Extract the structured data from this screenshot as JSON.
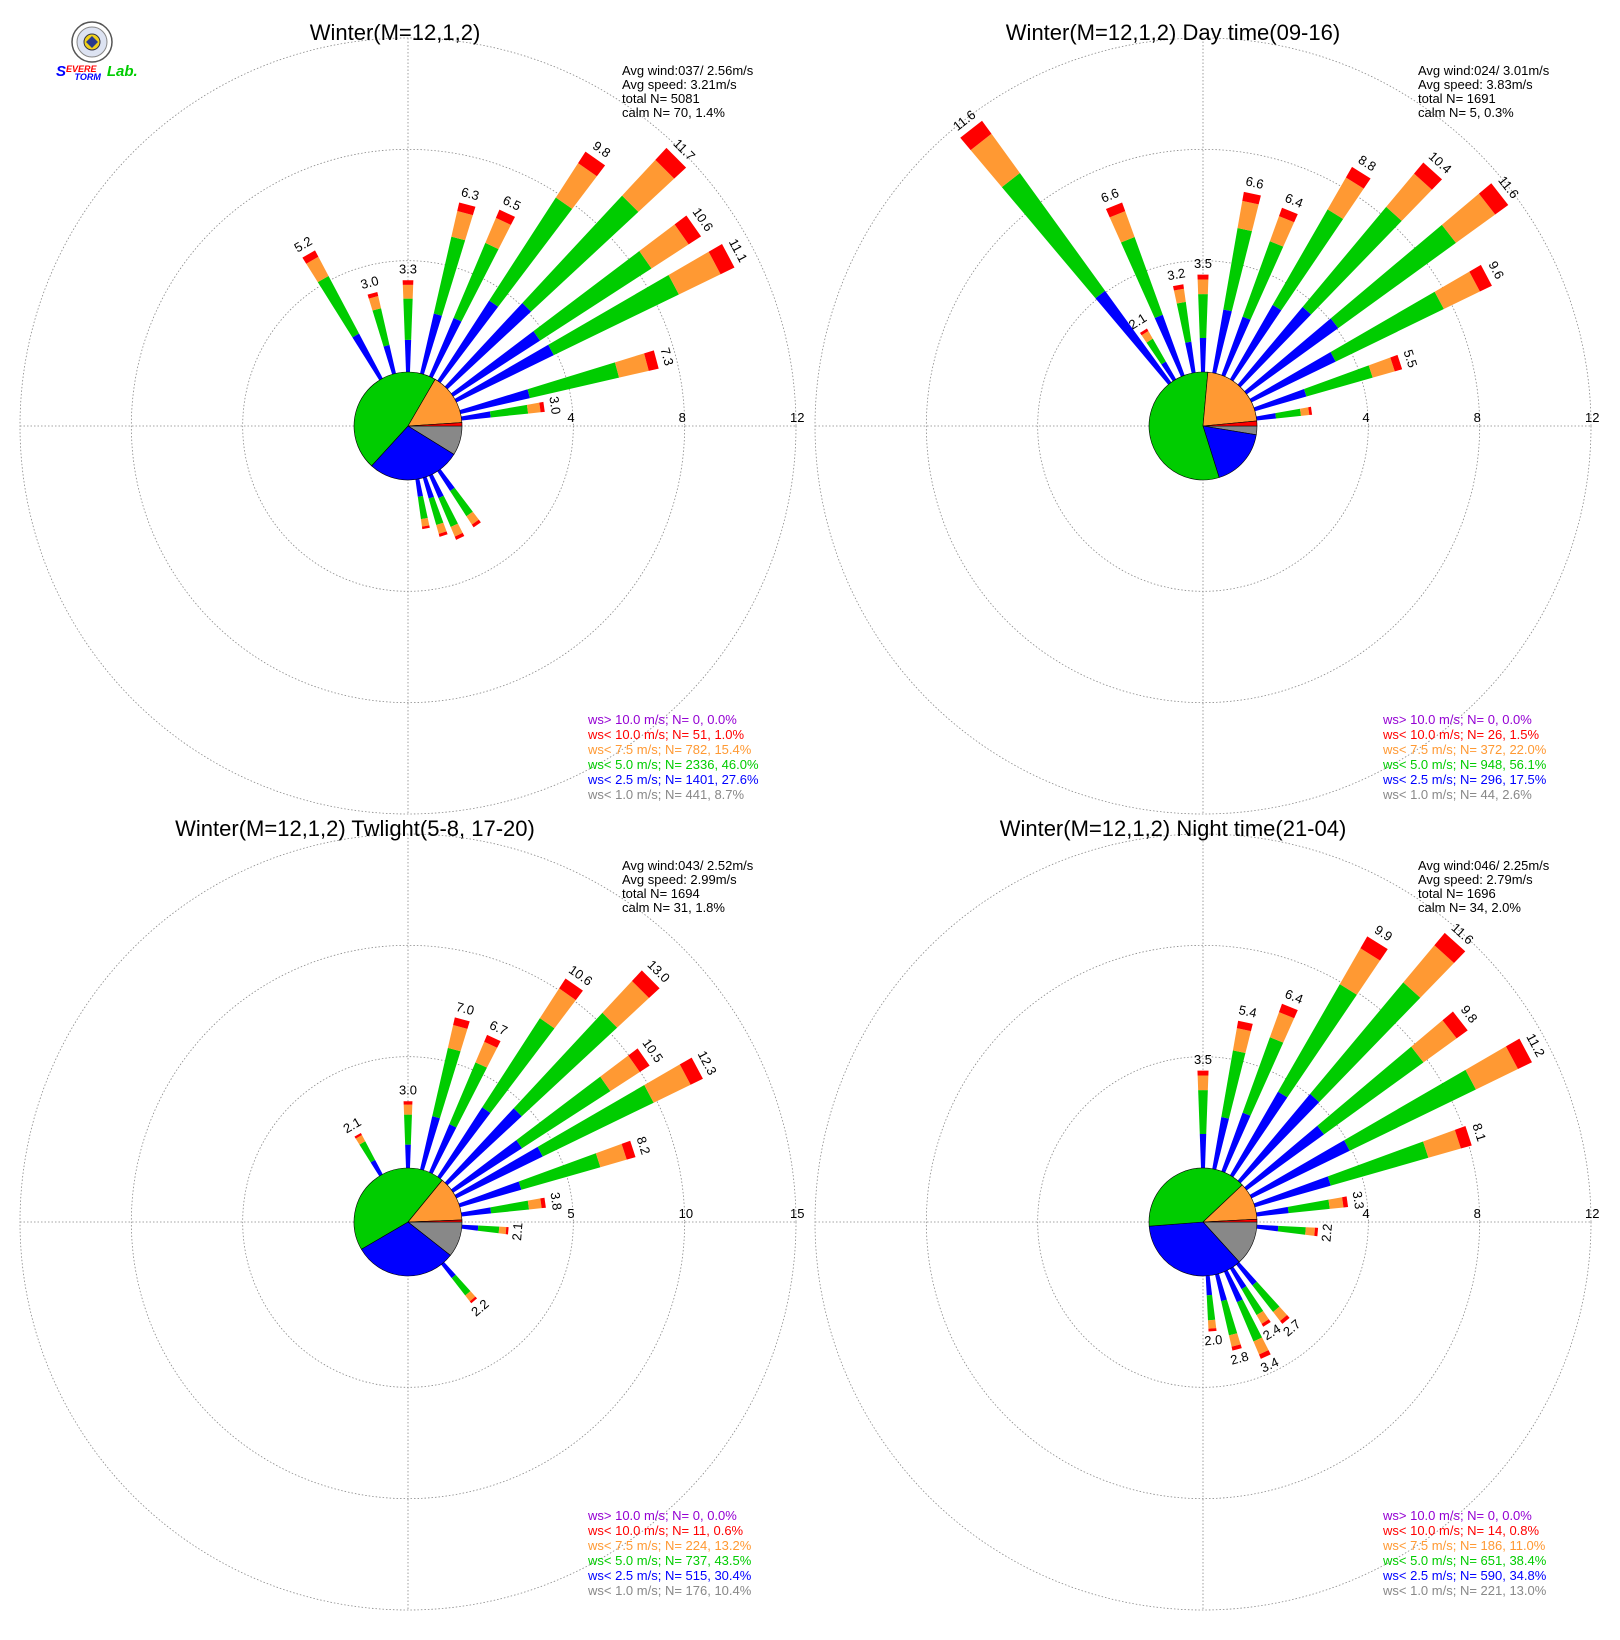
{
  "colors": {
    "gt10": "#9400D3",
    "lt10": "#FF0000",
    "lt7_5": "#FF9933",
    "lt5": "#00CC00",
    "lt2_5": "#0000FF",
    "lt1": "#888888",
    "pie_slices": [
      "#888888",
      "#0000FF",
      "#00CC00",
      "#FF9933",
      "#FF0000"
    ]
  },
  "logo": {
    "icon": "severe-storm-lab-seal-icon",
    "text_parts": [
      "S",
      "EVERE",
      "TORM",
      "Lab."
    ],
    "text_colors": [
      "#0000FF",
      "#FF0000",
      "#0000FF",
      "#00CC00"
    ]
  },
  "chart_data": [
    {
      "type": "polar-wind-rose",
      "title": "Winter(M=12,1,2)",
      "rings": [
        4,
        8,
        12
      ],
      "rmax": 12,
      "stats": {
        "avg_wind": "Avg wind:037/ 2.56m/s",
        "avg_speed": "Avg speed: 3.21m/s",
        "total": "total N=      5081",
        "calm": "calm N=     70,   1.4%"
      },
      "legend": [
        {
          "label": "ws> 10.0 m/s; N=",
          "value": "    0,  0.0%",
          "color": "#9400D3"
        },
        {
          "label": "ws< 10.0 m/s; N=",
          "value": "   51,  1.0%",
          "color": "#FF0000"
        },
        {
          "label": "ws<  7.5 m/s; N=",
          "value": "  782, 15.4%",
          "color": "#FF9933"
        },
        {
          "label": "ws<  5.0 m/s; N=",
          "value": " 2336, 46.0%",
          "color": "#00CC00"
        },
        {
          "label": "ws<  2.5 m/s; N=",
          "value": " 1401, 27.6%",
          "color": "#0000FF"
        },
        {
          "label": "ws<  1.0 m/s; N=",
          "value": "  441,  8.7%",
          "color": "#888888"
        }
      ],
      "pie": [
        8.7,
        27.6,
        46.0,
        15.4,
        1.0
      ],
      "bars": [
        {
          "dir": 330,
          "total": 5.2,
          "label": "5.2"
        },
        {
          "dir": 345,
          "total": 3.0,
          "label": "3.0"
        },
        {
          "dir": 0,
          "total": 3.3,
          "label": "3.3"
        },
        {
          "dir": 15,
          "total": 6.3,
          "label": "6.3"
        },
        {
          "dir": 25,
          "total": 6.5,
          "label": "6.5"
        },
        {
          "dir": 35,
          "total": 9.8,
          "label": "9.8"
        },
        {
          "dir": 45,
          "total": 11.7,
          "label": "11.7"
        },
        {
          "dir": 55,
          "total": 10.6,
          "label": "10.6"
        },
        {
          "dir": 62,
          "total": 11.1,
          "label": "11.1"
        },
        {
          "dir": 75,
          "total": 7.3,
          "label": "7.3"
        },
        {
          "dir": 82,
          "total": 3.0,
          "label": "3.0"
        },
        {
          "dir": 145,
          "total": 2.4
        },
        {
          "dir": 155,
          "total": 2.5
        },
        {
          "dir": 162,
          "total": 2.2
        },
        {
          "dir": 170,
          "total": 1.8
        }
      ]
    },
    {
      "type": "polar-wind-rose",
      "title": "Winter(M=12,1,2) Day time(09-16)",
      "rings": [
        4,
        8,
        12
      ],
      "rmax": 12,
      "stats": {
        "avg_wind": "Avg wind:024/ 3.01m/s",
        "avg_speed": "Avg speed: 3.83m/s",
        "total": "total N=      1691",
        "calm": "calm N=      5,   0.3%"
      },
      "legend": [
        {
          "label": "ws> 10.0 m/s; N=",
          "value": "    0,  0.0%",
          "color": "#9400D3"
        },
        {
          "label": "ws< 10.0 m/s; N=",
          "value": "   26,  1.5%",
          "color": "#FF0000"
        },
        {
          "label": "ws<  7.5 m/s; N=",
          "value": "  372, 22.0%",
          "color": "#FF9933"
        },
        {
          "label": "ws<  5.0 m/s; N=",
          "value": "  948, 56.1%",
          "color": "#00CC00"
        },
        {
          "label": "ws<  2.5 m/s; N=",
          "value": "  296, 17.5%",
          "color": "#0000FF"
        },
        {
          "label": "ws<  1.0 m/s; N=",
          "value": "   44,  2.6%",
          "color": "#888888"
        }
      ],
      "pie": [
        2.6,
        17.5,
        56.1,
        22.0,
        1.5
      ],
      "bars": [
        {
          "dir": 322,
          "total": 11.6,
          "label": "11.6"
        },
        {
          "dir": 338,
          "total": 6.6,
          "label": "6.6"
        },
        {
          "dir": 350,
          "total": 3.2,
          "label": "3.2"
        },
        {
          "dir": 0,
          "total": 3.5,
          "label": "3.5"
        },
        {
          "dir": 328,
          "total": 2.1,
          "label": "2.1"
        },
        {
          "dir": 12,
          "total": 6.6,
          "label": "6.6"
        },
        {
          "dir": 22,
          "total": 6.4,
          "label": "6.4"
        },
        {
          "dir": 32,
          "total": 8.8,
          "label": "8.8"
        },
        {
          "dir": 42,
          "total": 10.4,
          "label": "10.4"
        },
        {
          "dir": 52,
          "total": 11.6,
          "label": "11.6"
        },
        {
          "dir": 62,
          "total": 9.6,
          "label": "9.6"
        },
        {
          "dir": 72,
          "total": 5.5,
          "label": "5.5"
        },
        {
          "dir": 82,
          "total": 2.0
        }
      ]
    },
    {
      "type": "polar-wind-rose",
      "title": "Winter(M=12,1,2) Twlight(5-8, 17-20)",
      "rings": [
        5,
        10,
        15
      ],
      "rmax": 15,
      "stats": {
        "avg_wind": "Avg wind:043/ 2.52m/s",
        "avg_speed": "Avg speed: 2.99m/s",
        "total": "total N=      1694",
        "calm": "calm N=     31,   1.8%"
      },
      "legend": [
        {
          "label": "ws> 10.0 m/s; N=",
          "value": "    0,  0.0%",
          "color": "#9400D3"
        },
        {
          "label": "ws< 10.0 m/s; N=",
          "value": "   11,  0.6%",
          "color": "#FF0000"
        },
        {
          "label": "ws<  7.5 m/s; N=",
          "value": "  224, 13.2%",
          "color": "#FF9933"
        },
        {
          "label": "ws<  5.0 m/s; N=",
          "value": "  737, 43.5%",
          "color": "#00CC00"
        },
        {
          "label": "ws<  2.5 m/s; N=",
          "value": "  515, 30.4%",
          "color": "#0000FF"
        },
        {
          "label": "ws<  1.0 m/s; N=",
          "value": "  176, 10.4%",
          "color": "#888888"
        }
      ],
      "pie": [
        10.4,
        30.4,
        43.5,
        13.2,
        0.6
      ],
      "bars": [
        {
          "dir": 330,
          "total": 2.1,
          "label": "2.1"
        },
        {
          "dir": 0,
          "total": 3.0,
          "label": "3.0"
        },
        {
          "dir": 15,
          "total": 7.0,
          "label": "7.0"
        },
        {
          "dir": 25,
          "total": 6.7,
          "label": "6.7"
        },
        {
          "dir": 35,
          "total": 10.6,
          "label": "10.6"
        },
        {
          "dir": 45,
          "total": 13.0,
          "label": "13.0"
        },
        {
          "dir": 55,
          "total": 10.5,
          "label": "10.5"
        },
        {
          "dir": 62,
          "total": 12.3,
          "label": "12.3"
        },
        {
          "dir": 72,
          "total": 8.2,
          "label": "8.2"
        },
        {
          "dir": 82,
          "total": 3.8,
          "label": "3.8"
        },
        {
          "dir": 95,
          "total": 2.1,
          "label": "2.1"
        },
        {
          "dir": 140,
          "total": 2.2,
          "label": "2.2"
        }
      ]
    },
    {
      "type": "polar-wind-rose",
      "title": "Winter(M=12,1,2) Night time(21-04)",
      "rings": [
        4,
        8,
        12
      ],
      "rmax": 12,
      "stats": {
        "avg_wind": "Avg wind:046/ 2.25m/s",
        "avg_speed": "Avg speed: 2.79m/s",
        "total": "total N=      1696",
        "calm": "calm N=     34,   2.0%"
      },
      "legend": [
        {
          "label": "ws> 10.0 m/s; N=",
          "value": "    0,  0.0%",
          "color": "#9400D3"
        },
        {
          "label": "ws< 10.0 m/s; N=",
          "value": "   14,  0.8%",
          "color": "#FF0000"
        },
        {
          "label": "ws<  7.5 m/s; N=",
          "value": "  186, 11.0%",
          "color": "#FF9933"
        },
        {
          "label": "ws<  5.0 m/s; N=",
          "value": "  651, 38.4%",
          "color": "#00CC00"
        },
        {
          "label": "ws<  2.5 m/s; N=",
          "value": "  590, 34.8%",
          "color": "#0000FF"
        },
        {
          "label": "ws<  1.0 m/s; N=",
          "value": "  221, 13.0%",
          "color": "#888888"
        }
      ],
      "pie": [
        13.0,
        34.8,
        38.4,
        11.0,
        0.8
      ],
      "bars": [
        {
          "dir": 0,
          "total": 3.5,
          "label": "3.5"
        },
        {
          "dir": 12,
          "total": 5.4,
          "label": "5.4"
        },
        {
          "dir": 22,
          "total": 6.4,
          "label": "6.4"
        },
        {
          "dir": 32,
          "total": 9.9,
          "label": "9.9"
        },
        {
          "dir": 42,
          "total": 11.6,
          "label": "11.6"
        },
        {
          "dir": 52,
          "total": 9.8,
          "label": "9.8"
        },
        {
          "dir": 62,
          "total": 11.2,
          "label": "11.2"
        },
        {
          "dir": 72,
          "total": 8.1,
          "label": "8.1"
        },
        {
          "dir": 82,
          "total": 3.3,
          "label": "3.3"
        },
        {
          "dir": 95,
          "total": 2.2,
          "label": "2.2"
        },
        {
          "dir": 140,
          "total": 2.7,
          "label": "2.7"
        },
        {
          "dir": 148,
          "total": 2.4,
          "label": "2.4"
        },
        {
          "dir": 155,
          "total": 3.4,
          "label": "3.4"
        },
        {
          "dir": 165,
          "total": 2.8,
          "label": "2.8"
        },
        {
          "dir": 175,
          "total": 2.0,
          "label": "2.0"
        }
      ]
    }
  ]
}
